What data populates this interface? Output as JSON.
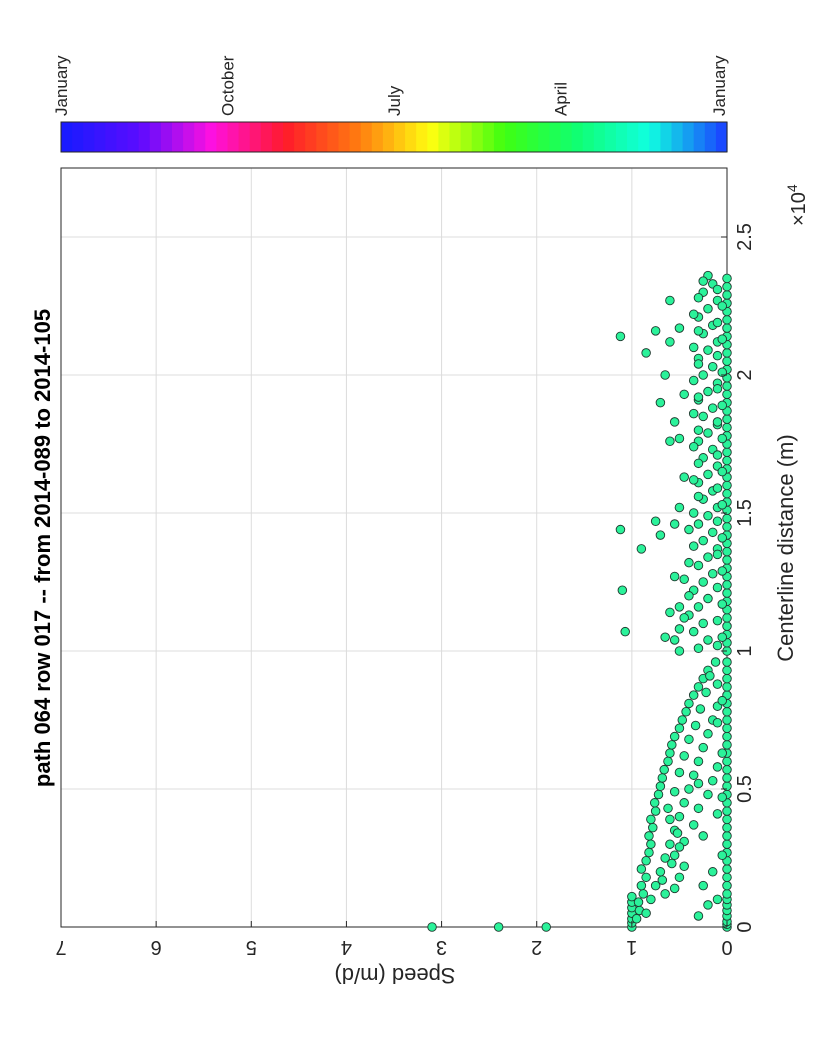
{
  "chart_data": {
    "type": "scatter",
    "title": "path 064 row 017  -- from 2014-089 to 2014-105",
    "xlabel": "Centerline distance (m)",
    "ylabel": "Speed (m/d)",
    "x_multiplier_label": "×10",
    "x_multiplier_exponent": "4",
    "xlim": [
      0,
      27500
    ],
    "ylim": [
      0,
      7
    ],
    "xticks": [
      0,
      5000,
      10000,
      15000,
      20000,
      25000
    ],
    "xtick_labels": [
      "0",
      "0.5",
      "1",
      "1.5",
      "2",
      "2.5"
    ],
    "yticks": [
      0,
      1,
      2,
      3,
      4,
      5,
      6,
      7
    ],
    "ytick_labels": [
      "0",
      "1",
      "2",
      "3",
      "4",
      "5",
      "6",
      "7"
    ],
    "grid": true,
    "marker_color": "#2bf29a",
    "colorbar": {
      "labels": [
        "January",
        "October",
        "July",
        "April",
        "January"
      ],
      "colors": [
        "#1a1aff",
        "#5b0cff",
        "#ff10e0",
        "#ff1a2a",
        "#ff7a10",
        "#ffff10",
        "#40ff10",
        "#10ff70",
        "#10ffe0",
        "#1a4aff"
      ]
    },
    "series": [
      {
        "points": [
          [
            0,
            3.1
          ],
          [
            0,
            2.4
          ],
          [
            0,
            1.9
          ],
          [
            0,
            1.0
          ],
          [
            150,
            1.0
          ],
          [
            300,
            1.0
          ],
          [
            500,
            1.0
          ],
          [
            700,
            1.0
          ],
          [
            900,
            1.0
          ],
          [
            1100,
            1.0
          ],
          [
            0,
            0.0
          ],
          [
            100,
            0.0
          ],
          [
            200,
            0.0
          ],
          [
            400,
            0.0
          ],
          [
            600,
            0.0
          ],
          [
            800,
            0.0
          ],
          [
            1000,
            0.0
          ],
          [
            1200,
            0.0
          ],
          [
            1500,
            0.0
          ],
          [
            1800,
            0.0
          ],
          [
            2100,
            0.0
          ],
          [
            2400,
            0.0
          ],
          [
            2700,
            0.0
          ],
          [
            3000,
            0.0
          ],
          [
            3300,
            0.0
          ],
          [
            3600,
            0.0
          ],
          [
            3900,
            0.0
          ],
          [
            4200,
            0.0
          ],
          [
            4500,
            0.0
          ],
          [
            4800,
            0.0
          ],
          [
            5100,
            0.0
          ],
          [
            5400,
            0.0
          ],
          [
            5700,
            0.0
          ],
          [
            6000,
            0.0
          ],
          [
            6300,
            0.0
          ],
          [
            6600,
            0.0
          ],
          [
            6900,
            0.0
          ],
          [
            7200,
            0.0
          ],
          [
            7500,
            0.0
          ],
          [
            7800,
            0.0
          ],
          [
            8100,
            0.0
          ],
          [
            8400,
            0.0
          ],
          [
            8700,
            0.0
          ],
          [
            9000,
            0.0
          ],
          [
            9300,
            0.0
          ],
          [
            9600,
            0.0
          ],
          [
            300,
            0.95
          ],
          [
            600,
            0.92
          ],
          [
            900,
            0.93
          ],
          [
            1200,
            0.88
          ],
          [
            1500,
            0.9
          ],
          [
            1800,
            0.85
          ],
          [
            2100,
            0.9
          ],
          [
            2400,
            0.85
          ],
          [
            2700,
            0.82
          ],
          [
            3000,
            0.8
          ],
          [
            3300,
            0.82
          ],
          [
            3600,
            0.78
          ],
          [
            3900,
            0.8
          ],
          [
            4200,
            0.75
          ],
          [
            4500,
            0.76
          ],
          [
            4800,
            0.72
          ],
          [
            5100,
            0.7
          ],
          [
            5400,
            0.68
          ],
          [
            5700,
            0.66
          ],
          [
            6000,
            0.62
          ],
          [
            6300,
            0.6
          ],
          [
            6600,
            0.58
          ],
          [
            6900,
            0.55
          ],
          [
            7200,
            0.5
          ],
          [
            7500,
            0.47
          ],
          [
            7800,
            0.43
          ],
          [
            8100,
            0.4
          ],
          [
            8400,
            0.35
          ],
          [
            8700,
            0.3
          ],
          [
            9000,
            0.25
          ],
          [
            9300,
            0.2
          ],
          [
            9600,
            0.12
          ],
          [
            500,
            0.85
          ],
          [
            1000,
            0.8
          ],
          [
            1500,
            0.75
          ],
          [
            2000,
            0.7
          ],
          [
            2500,
            0.65
          ],
          [
            3000,
            0.6
          ],
          [
            3500,
            0.55
          ],
          [
            4000,
            0.5
          ],
          [
            4500,
            0.45
          ],
          [
            5000,
            0.4
          ],
          [
            5500,
            0.35
          ],
          [
            6000,
            0.3
          ],
          [
            6500,
            0.25
          ],
          [
            7000,
            0.2
          ],
          [
            7500,
            0.15
          ],
          [
            8000,
            0.1
          ],
          [
            1200,
            0.65
          ],
          [
            1400,
            0.55
          ],
          [
            1800,
            0.5
          ],
          [
            2200,
            0.45
          ],
          [
            2600,
            0.55
          ],
          [
            3100,
            0.45
          ],
          [
            3700,
            0.35
          ],
          [
            4300,
            0.3
          ],
          [
            4800,
            0.2
          ],
          [
            5300,
            0.15
          ],
          [
            5800,
            0.1
          ],
          [
            400,
            0.3
          ],
          [
            800,
            0.2
          ],
          [
            1000,
            0.1
          ],
          [
            1500,
            0.25
          ],
          [
            2000,
            0.15
          ],
          [
            2600,
            0.05
          ],
          [
            3300,
            0.25
          ],
          [
            4100,
            0.1
          ],
          [
            4700,
            0.05
          ],
          [
            5200,
            0.3
          ],
          [
            6300,
            0.05
          ],
          [
            7400,
            0.1
          ],
          [
            8200,
            0.05
          ],
          [
            8800,
            0.1
          ],
          [
            1700,
            0.68
          ],
          [
            2300,
            0.58
          ],
          [
            2900,
            0.5
          ],
          [
            3400,
            0.52
          ],
          [
            3900,
            0.6
          ],
          [
            4300,
            0.62
          ],
          [
            4900,
            0.55
          ],
          [
            5600,
            0.5
          ],
          [
            6200,
            0.45
          ],
          [
            6800,
            0.4
          ],
          [
            7300,
            0.33
          ],
          [
            7900,
            0.28
          ],
          [
            8500,
            0.22
          ],
          [
            9100,
            0.18
          ],
          [
            10000,
            0.0
          ],
          [
            10300,
            0.0
          ],
          [
            10600,
            0.0
          ],
          [
            10900,
            0.0
          ],
          [
            11200,
            0.0
          ],
          [
            11500,
            0.0
          ],
          [
            11800,
            0.0
          ],
          [
            12100,
            0.0
          ],
          [
            12400,
            0.0
          ],
          [
            12700,
            0.0
          ],
          [
            13000,
            0.0
          ],
          [
            13300,
            0.0
          ],
          [
            13600,
            0.0
          ],
          [
            13900,
            0.0
          ],
          [
            14200,
            0.0
          ],
          [
            14500,
            0.0
          ],
          [
            14800,
            0.0
          ],
          [
            15100,
            0.0
          ],
          [
            15400,
            0.0
          ],
          [
            15700,
            0.0
          ],
          [
            16000,
            0.0
          ],
          [
            16300,
            0.0
          ],
          [
            16600,
            0.0
          ],
          [
            16900,
            0.0
          ],
          [
            17200,
            0.0
          ],
          [
            17500,
            0.0
          ],
          [
            17800,
            0.0
          ],
          [
            18100,
            0.0
          ],
          [
            18400,
            0.0
          ],
          [
            18700,
            0.0
          ],
          [
            19000,
            0.0
          ],
          [
            19300,
            0.0
          ],
          [
            19600,
            0.0
          ],
          [
            19900,
            0.0
          ],
          [
            20200,
            0.0
          ],
          [
            20500,
            0.0
          ],
          [
            20800,
            0.0
          ],
          [
            21100,
            0.0
          ],
          [
            21400,
            0.0
          ],
          [
            21700,
            0.0
          ],
          [
            22000,
            0.0
          ],
          [
            22300,
            0.0
          ],
          [
            22600,
            0.0
          ],
          [
            22900,
            0.0
          ],
          [
            23200,
            0.0
          ],
          [
            23500,
            0.0
          ],
          [
            10100,
            0.3
          ],
          [
            10400,
            0.2
          ],
          [
            10700,
            0.35
          ],
          [
            11000,
            0.25
          ],
          [
            11300,
            0.4
          ],
          [
            11600,
            0.3
          ],
          [
            11900,
            0.2
          ],
          [
            12200,
            0.35
          ],
          [
            12500,
            0.25
          ],
          [
            12800,
            0.15
          ],
          [
            13100,
            0.3
          ],
          [
            13400,
            0.2
          ],
          [
            13700,
            0.1
          ],
          [
            14000,
            0.25
          ],
          [
            14300,
            0.15
          ],
          [
            14600,
            0.3
          ],
          [
            14900,
            0.2
          ],
          [
            15200,
            0.1
          ],
          [
            15500,
            0.25
          ],
          [
            15800,
            0.15
          ],
          [
            16100,
            0.3
          ],
          [
            16400,
            0.2
          ],
          [
            16700,
            0.1
          ],
          [
            17000,
            0.25
          ],
          [
            17300,
            0.15
          ],
          [
            17600,
            0.3
          ],
          [
            17900,
            0.2
          ],
          [
            18200,
            0.1
          ],
          [
            18500,
            0.25
          ],
          [
            18800,
            0.15
          ],
          [
            19100,
            0.3
          ],
          [
            19400,
            0.2
          ],
          [
            19700,
            0.1
          ],
          [
            20000,
            0.25
          ],
          [
            20300,
            0.15
          ],
          [
            20600,
            0.3
          ],
          [
            20900,
            0.2
          ],
          [
            21200,
            0.1
          ],
          [
            21500,
            0.25
          ],
          [
            21800,
            0.15
          ],
          [
            22100,
            0.3
          ],
          [
            22400,
            0.2
          ],
          [
            22700,
            0.1
          ],
          [
            23000,
            0.25
          ],
          [
            23300,
            0.15
          ],
          [
            23600,
            0.2
          ],
          [
            10200,
            0.1
          ],
          [
            10500,
            0.05
          ],
          [
            11100,
            0.1
          ],
          [
            11700,
            0.05
          ],
          [
            12300,
            0.1
          ],
          [
            12900,
            0.05
          ],
          [
            13500,
            0.1
          ],
          [
            14100,
            0.05
          ],
          [
            14700,
            0.1
          ],
          [
            15300,
            0.05
          ],
          [
            15900,
            0.1
          ],
          [
            16500,
            0.05
          ],
          [
            17100,
            0.1
          ],
          [
            17700,
            0.05
          ],
          [
            18300,
            0.1
          ],
          [
            18900,
            0.05
          ],
          [
            19500,
            0.1
          ],
          [
            20100,
            0.05
          ],
          [
            20700,
            0.1
          ],
          [
            21300,
            0.05
          ],
          [
            21900,
            0.1
          ],
          [
            22500,
            0.05
          ],
          [
            23100,
            0.1
          ],
          [
            10000,
            0.5
          ],
          [
            10400,
            0.55
          ],
          [
            10800,
            0.5
          ],
          [
            11200,
            0.45
          ],
          [
            11600,
            0.5
          ],
          [
            12000,
            0.4
          ],
          [
            12600,
            0.45
          ],
          [
            13200,
            0.4
          ],
          [
            13800,
            0.35
          ],
          [
            14400,
            0.4
          ],
          [
            15000,
            0.35
          ],
          [
            15600,
            0.3
          ],
          [
            16200,
            0.35
          ],
          [
            16800,
            0.3
          ],
          [
            17400,
            0.35
          ],
          [
            18000,
            0.3
          ],
          [
            18600,
            0.35
          ],
          [
            19200,
            0.3
          ],
          [
            19800,
            0.35
          ],
          [
            20400,
            0.3
          ],
          [
            21000,
            0.35
          ],
          [
            21600,
            0.3
          ],
          [
            22200,
            0.35
          ],
          [
            22800,
            0.3
          ],
          [
            23400,
            0.25
          ],
          [
            10500,
            0.65
          ],
          [
            11400,
            0.6
          ],
          [
            12700,
            0.55
          ],
          [
            14600,
            0.55
          ],
          [
            16300,
            0.45
          ],
          [
            17700,
            0.5
          ],
          [
            19300,
            0.45
          ],
          [
            21700,
            0.5
          ],
          [
            10700,
            1.07
          ],
          [
            12200,
            1.1
          ],
          [
            14400,
            1.12
          ],
          [
            21400,
            1.12
          ],
          [
            13700,
            0.9
          ],
          [
            14200,
            0.7
          ],
          [
            14700,
            0.75
          ],
          [
            15200,
            0.5
          ],
          [
            17600,
            0.6
          ],
          [
            18300,
            0.55
          ],
          [
            19000,
            0.7
          ],
          [
            20000,
            0.65
          ],
          [
            20800,
            0.85
          ],
          [
            21200,
            0.6
          ],
          [
            21600,
            0.75
          ],
          [
            22700,
            0.6
          ]
        ]
      }
    ]
  }
}
